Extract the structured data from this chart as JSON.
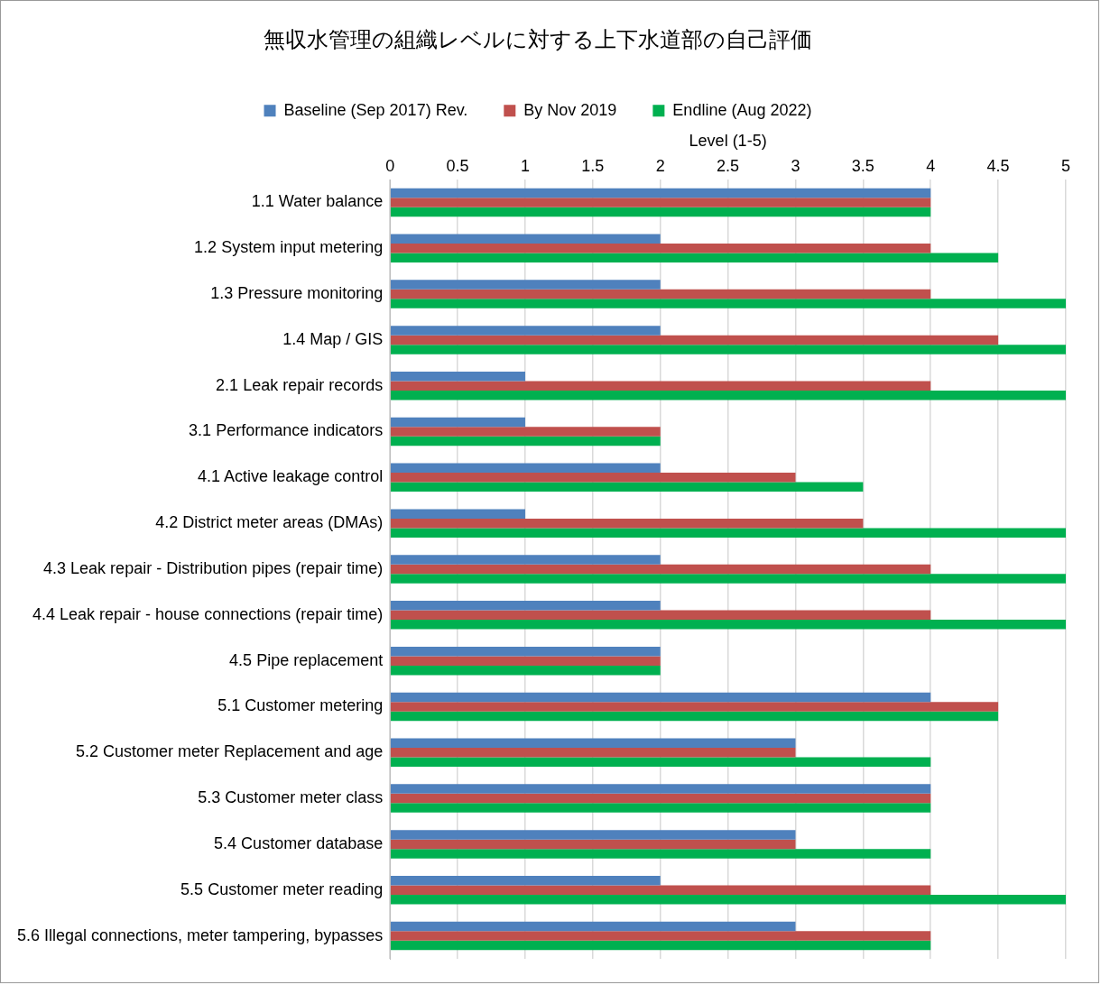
{
  "chart_data": {
    "type": "bar",
    "orientation": "horizontal",
    "title": "無収水管理の組織レベルに対する上下水道部の自己評価",
    "xlabel": "Level (1-5)",
    "categories": [
      "1.1 Water balance",
      "1.2 System input metering",
      "1.3 Pressure monitoring",
      "1.4 Map / GIS",
      "2.1 Leak repair records",
      "3.1 Performance indicators",
      "4.1 Active leakage control",
      "4.2 District meter areas (DMAs)",
      "4.3 Leak repair - Distribution pipes (repair time)",
      "4.4 Leak repair - house connections (repair time)",
      "4.5 Pipe replacement",
      "5.1 Customer metering",
      "5.2 Customer meter Replacement and age",
      "5.3 Customer meter class",
      "5.4 Customer database",
      "5.5 Customer meter reading",
      "5.6 Illegal connections, meter tampering, bypasses"
    ],
    "series": [
      {
        "name": "Baseline (Sep 2017) Rev.",
        "color": "#4f81bd",
        "values": [
          4,
          2,
          2,
          2,
          1,
          1,
          2,
          1,
          2,
          2,
          2,
          4,
          3,
          4,
          3,
          2,
          3
        ]
      },
      {
        "name": "By Nov 2019",
        "color": "#c0504d",
        "values": [
          4,
          4,
          4,
          4.5,
          4,
          2,
          3,
          3.5,
          4,
          4,
          2,
          4.5,
          3,
          4,
          3,
          4,
          4
        ]
      },
      {
        "name": "Endline (Aug 2022)",
        "color": "#00b050",
        "values": [
          4,
          4.5,
          5,
          5,
          5,
          2,
          3.5,
          5,
          5,
          5,
          2,
          4.5,
          4,
          4,
          4,
          5,
          4
        ]
      }
    ],
    "xlim": [
      0,
      5
    ],
    "xticks": [
      0,
      0.5,
      1,
      1.5,
      2,
      2.5,
      3,
      3.5,
      4,
      4.5,
      5
    ],
    "grid": "x",
    "legend": "top"
  }
}
